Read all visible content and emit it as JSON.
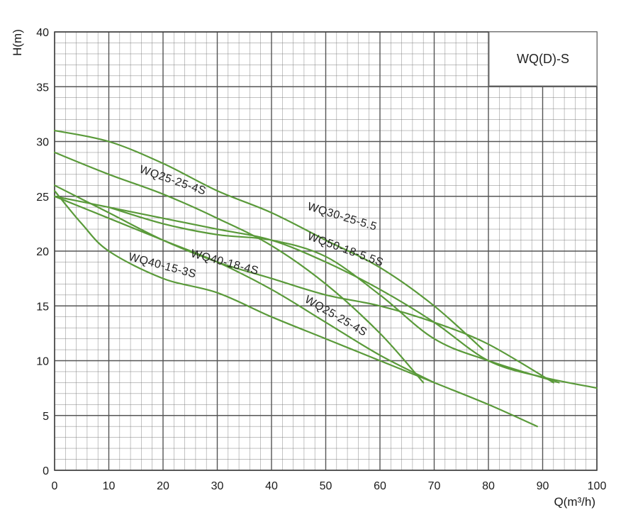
{
  "chart_data": {
    "type": "line",
    "title": "",
    "xlabel": "Q(m³/h)",
    "ylabel": "H(m)",
    "xlim": [
      0,
      100
    ],
    "ylim": [
      0,
      40
    ],
    "x_ticks": [
      0,
      10,
      20,
      30,
      40,
      50,
      60,
      70,
      80,
      90,
      100
    ],
    "y_ticks": [
      0,
      5,
      10,
      15,
      20,
      25,
      30,
      35,
      40
    ],
    "grid": true,
    "legend": {
      "text": "WQ(D)-S",
      "placement": "top-right"
    },
    "line_color": "#5a9a3a",
    "grid_color": "#7a7a7a",
    "series": [
      {
        "name": "WQ25-25-4S",
        "x": [
          0,
          10,
          20,
          30,
          40,
          50,
          60,
          68
        ],
        "y": [
          29,
          27,
          25.2,
          23,
          20.5,
          17,
          12.5,
          8
        ]
      },
      {
        "name": "WQ30-25-5.5",
        "x": [
          0,
          10,
          20,
          30,
          40,
          50,
          60,
          70,
          79
        ],
        "y": [
          31,
          30,
          28,
          25.5,
          23.5,
          21,
          18.5,
          15,
          11
        ]
      },
      {
        "name": "WQ50-18-5.5S",
        "x": [
          0,
          10,
          20,
          30,
          40,
          50,
          60,
          70,
          80,
          90,
          100
        ],
        "y": [
          25,
          24,
          23,
          22,
          21,
          19,
          16.5,
          13.5,
          10,
          8.5,
          7.5
        ]
      },
      {
        "name": "WQ40-18-4S",
        "x": [
          0,
          10,
          20,
          30,
          40,
          50,
          60,
          70,
          80,
          92
        ],
        "y": [
          26,
          23.5,
          21,
          19,
          17.5,
          16,
          15,
          13.5,
          11.5,
          8
        ]
      },
      {
        "name": "WQ25-25-4S",
        "x": [
          10,
          20,
          30,
          40,
          50,
          60,
          70,
          80,
          93
        ],
        "y": [
          24,
          22.5,
          21.5,
          21,
          19.5,
          16,
          12,
          10,
          8
        ]
      },
      {
        "name": "WQ40-15-3S",
        "x": [
          0,
          5,
          10,
          20,
          30,
          40,
          50,
          60,
          70,
          80,
          89
        ],
        "y": [
          25.5,
          22.5,
          20,
          17.5,
          16.2,
          14,
          12,
          10,
          8,
          6,
          4
        ]
      },
      {
        "name": "WQ25-25-4S",
        "x": [
          0,
          10,
          20,
          30,
          40,
          50,
          60,
          70
        ],
        "y": [
          25,
          23,
          21,
          19,
          16.5,
          13.5,
          10.5,
          8
        ]
      }
    ],
    "annotations": [
      {
        "id": "a1",
        "text": "WQ25-25-4S",
        "x": 15.5,
        "y": 27.2,
        "angle": 19
      },
      {
        "id": "a2",
        "text": "WQ30-25-5.5",
        "x": 46.5,
        "y": 23.8,
        "angle": 17
      },
      {
        "id": "a3",
        "text": "WQ50-18-5.5S",
        "x": 46.5,
        "y": 21.1,
        "angle": 20
      },
      {
        "id": "a4",
        "text": "WQ40-18-4S",
        "x": 25,
        "y": 19.5,
        "angle": 15
      },
      {
        "id": "a5",
        "text": "WQ40-15-3S",
        "x": 13.5,
        "y": 19.2,
        "angle": 15
      },
      {
        "id": "a6",
        "text": "WQ25-25-4S",
        "x": 46,
        "y": 15.4,
        "angle": 30
      }
    ]
  }
}
